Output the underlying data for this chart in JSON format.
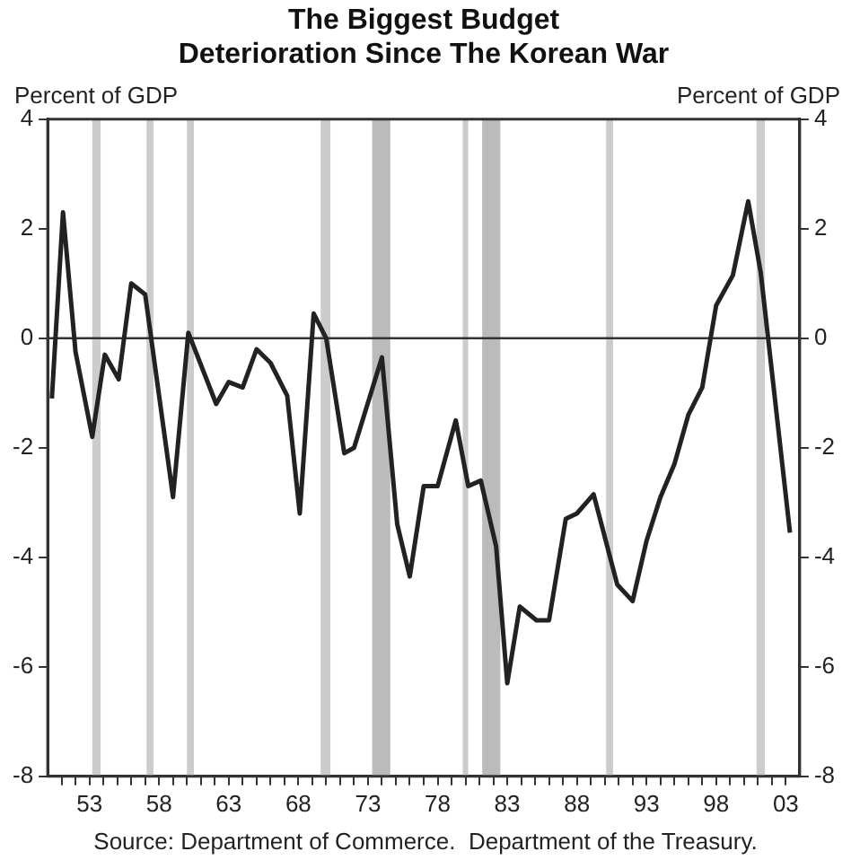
{
  "chart_data": {
    "type": "line",
    "title": "The Biggest Budget Deterioration Since The Korean War",
    "ylabel": "Percent of GDP",
    "y2label": "Percent of GDP",
    "annotations": [
      "Source: Department of Commerce.  Department of the Treasury."
    ],
    "x": [
      1950.3,
      1951.1,
      1952,
      1953.2,
      1954.1,
      1955.1,
      1956,
      1957,
      1959,
      1960.1,
      1962.1,
      1963,
      1964,
      1965,
      1966,
      1967.2,
      1968.1,
      1969.1,
      1970,
      1971.3,
      1972,
      1974,
      1975.1,
      1976,
      1977,
      1978,
      1979.3,
      1980.2,
      1981.1,
      1982.2,
      1983,
      1983.9,
      1985.1,
      1986,
      1987.2,
      1988,
      1989.2,
      1990.9,
      1992,
      1993,
      1994,
      1995,
      1996,
      1997,
      1998,
      1999.2,
      2000.3,
      2001.2,
      2003.3
    ],
    "series": [
      {
        "color": "#222222",
        "values": [
          -1.1,
          2.3,
          -0.25,
          -1.8,
          -0.3,
          -0.75,
          1.0,
          0.8,
          -2.9,
          0.1,
          -1.2,
          -0.8,
          -0.9,
          -0.2,
          -0.45,
          -1.05,
          -3.2,
          0.45,
          0,
          -2.1,
          -2.0,
          -0.35,
          -3.4,
          -4.35,
          -2.7,
          -2.7,
          -1.5,
          -2.7,
          -2.6,
          -3.8,
          -6.3,
          -4.9,
          -5.15,
          -5.15,
          -3.3,
          -3.2,
          -2.85,
          -4.5,
          -4.8,
          -3.7,
          -2.9,
          -2.3,
          -1.4,
          -0.9,
          0.6,
          1.15,
          2.5,
          1.2,
          -3.55
        ]
      }
    ],
    "xlim": [
      1950,
      2004
    ],
    "xticks": [
      {
        "value": 1951,
        "label": null
      },
      {
        "value": 1952,
        "label": null
      },
      {
        "value": 1953,
        "label": "53"
      },
      {
        "value": 1954,
        "label": null
      },
      {
        "value": 1955,
        "label": null
      },
      {
        "value": 1956,
        "label": null
      },
      {
        "value": 1957,
        "label": null
      },
      {
        "value": 1958,
        "label": "58"
      },
      {
        "value": 1959,
        "label": null
      },
      {
        "value": 1960,
        "label": null
      },
      {
        "value": 1961,
        "label": null
      },
      {
        "value": 1962,
        "label": null
      },
      {
        "value": 1963,
        "label": "63"
      },
      {
        "value": 1964,
        "label": null
      },
      {
        "value": 1965,
        "label": null
      },
      {
        "value": 1966,
        "label": null
      },
      {
        "value": 1967,
        "label": null
      },
      {
        "value": 1968,
        "label": "68"
      },
      {
        "value": 1969,
        "label": null
      },
      {
        "value": 1970,
        "label": null
      },
      {
        "value": 1971,
        "label": null
      },
      {
        "value": 1972,
        "label": null
      },
      {
        "value": 1973,
        "label": "73"
      },
      {
        "value": 1974,
        "label": null
      },
      {
        "value": 1975,
        "label": null
      },
      {
        "value": 1976,
        "label": null
      },
      {
        "value": 1977,
        "label": null
      },
      {
        "value": 1978,
        "label": "78"
      },
      {
        "value": 1979,
        "label": null
      },
      {
        "value": 1980,
        "label": null
      },
      {
        "value": 1981,
        "label": null
      },
      {
        "value": 1982,
        "label": null
      },
      {
        "value": 1983,
        "label": "83"
      },
      {
        "value": 1984,
        "label": null
      },
      {
        "value": 1985,
        "label": null
      },
      {
        "value": 1986,
        "label": null
      },
      {
        "value": 1987,
        "label": null
      },
      {
        "value": 1988,
        "label": "88"
      },
      {
        "value": 1989,
        "label": null
      },
      {
        "value": 1990,
        "label": null
      },
      {
        "value": 1991,
        "label": null
      },
      {
        "value": 1992,
        "label": null
      },
      {
        "value": 1993,
        "label": "93"
      },
      {
        "value": 1994,
        "label": null
      },
      {
        "value": 1995,
        "label": null
      },
      {
        "value": 1996,
        "label": null
      },
      {
        "value": 1997,
        "label": null
      },
      {
        "value": 1998,
        "label": "98"
      },
      {
        "value": 1999,
        "label": null
      },
      {
        "value": 2000,
        "label": null
      },
      {
        "value": 2001,
        "label": null
      },
      {
        "value": 2002,
        "label": null
      },
      {
        "value": 2003,
        "label": "03"
      }
    ],
    "ylim": [
      -8,
      4
    ],
    "yticks": [
      -8,
      -6,
      -4,
      -2,
      0,
      2,
      4
    ],
    "y2lim": [
      -8,
      4
    ],
    "y2ticks": [
      -8,
      -6,
      -4,
      -2,
      0,
      2,
      4
    ],
    "ref_lines": [
      {
        "axis": "y",
        "value": 0,
        "color": "#333333"
      }
    ],
    "bands": [
      {
        "axis": "x",
        "from": 1953.2,
        "to": 1953.8,
        "color": "#cccccc"
      },
      {
        "axis": "x",
        "from": 1957.1,
        "to": 1957.6,
        "color": "#cccccc"
      },
      {
        "axis": "x",
        "from": 1960,
        "to": 1960.5,
        "color": "#cccccc"
      },
      {
        "axis": "x",
        "from": 1969.6,
        "to": 1970.3,
        "color": "#cccccc"
      },
      {
        "axis": "x",
        "from": 1973.3,
        "to": 1974.6,
        "color": "#bbbbbb"
      },
      {
        "axis": "x",
        "from": 1979.8,
        "to": 1980.2,
        "color": "#cccccc"
      },
      {
        "axis": "x",
        "from": 1981.2,
        "to": 1982.5,
        "color": "#bbbbbb"
      },
      {
        "axis": "x",
        "from": 1990.1,
        "to": 1990.6,
        "color": "#cccccc"
      },
      {
        "axis": "x",
        "from": 2000.9,
        "to": 2001.5,
        "color": "#cccccc"
      }
    ],
    "grid": false,
    "legend": false,
    "marker": "none",
    "line_style": "solid"
  }
}
